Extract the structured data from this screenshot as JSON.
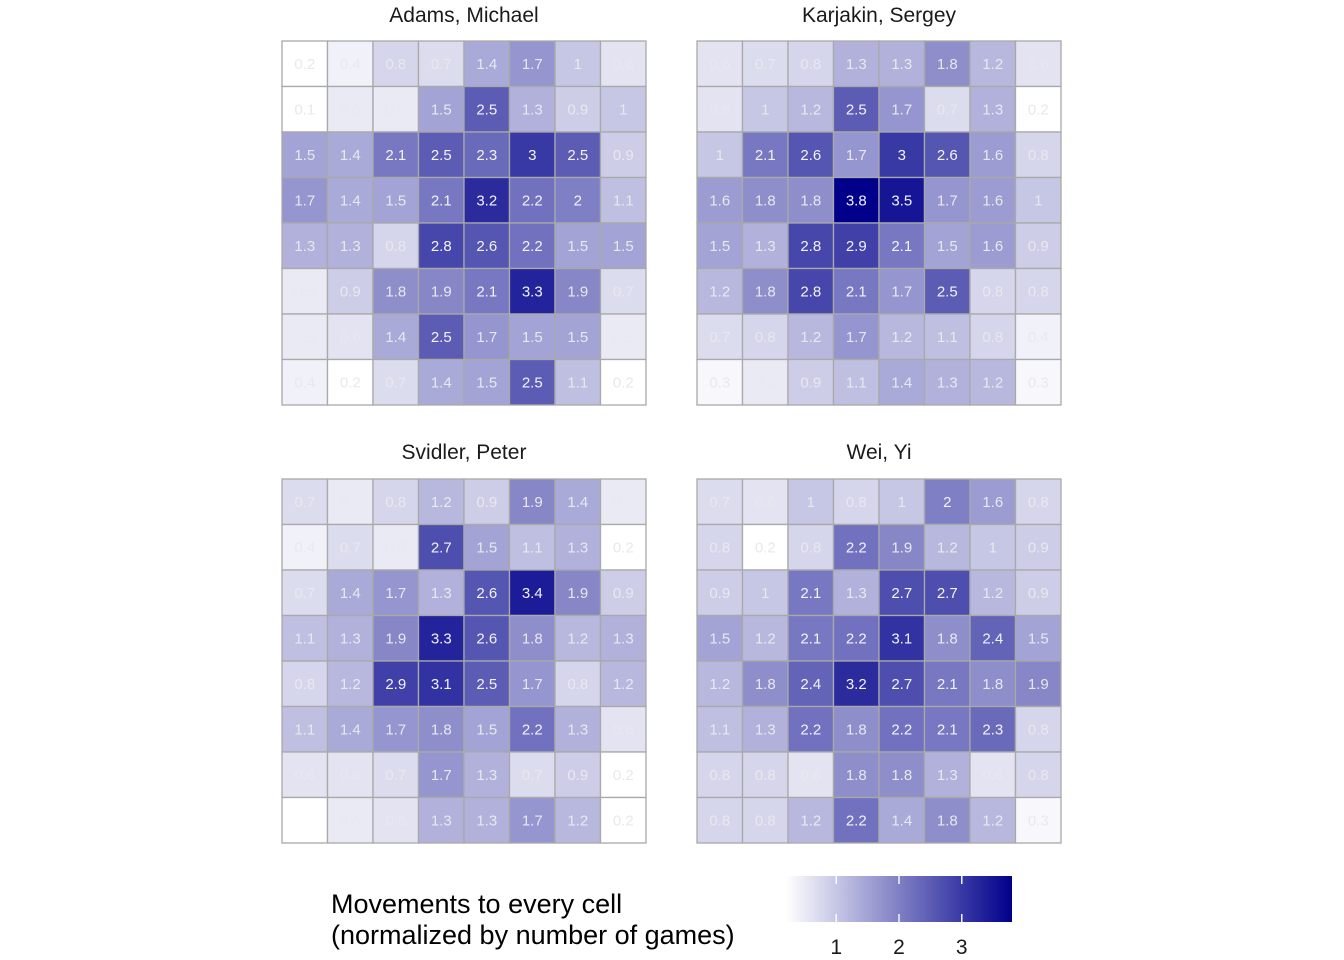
{
  "chart_data": {
    "type": "heatmap",
    "color_scale": {
      "low": "#ffffff",
      "high": "#00008b",
      "min": 0.2,
      "max": 3.8
    },
    "grid": false,
    "legend_position": "bottom",
    "legend": {
      "title_lines": [
        "Movements to every cell",
        "(normalized by number of games)"
      ],
      "ticks": [
        1,
        2,
        3
      ]
    },
    "panels": [
      {
        "title": "Adams, Michael",
        "values": [
          [
            0.2,
            0.4,
            0.8,
            0.7,
            1.4,
            1.7,
            1.0,
            0.6
          ],
          [
            0.1,
            0.5,
            0.5,
            1.5,
            2.5,
            1.3,
            0.9,
            1.0
          ],
          [
            1.5,
            1.4,
            2.1,
            2.5,
            2.3,
            3.0,
            2.5,
            0.9
          ],
          [
            1.7,
            1.4,
            1.5,
            2.1,
            3.2,
            2.2,
            2.0,
            1.1
          ],
          [
            1.3,
            1.3,
            0.8,
            2.8,
            2.6,
            2.2,
            1.5,
            1.5
          ],
          [
            0.5,
            0.9,
            1.8,
            1.9,
            2.1,
            3.3,
            1.9,
            0.7
          ],
          [
            0.5,
            0.6,
            1.4,
            2.5,
            1.7,
            1.5,
            1.5,
            0.5
          ],
          [
            0.4,
            0.2,
            0.7,
            1.4,
            1.5,
            2.5,
            1.1,
            0.2
          ]
        ]
      },
      {
        "title": "Karjakin, Sergey",
        "values": [
          [
            0.6,
            0.7,
            0.8,
            1.3,
            1.3,
            1.8,
            1.2,
            0.6
          ],
          [
            0.6,
            1.0,
            1.2,
            2.5,
            1.7,
            0.7,
            1.3,
            0.2
          ],
          [
            1.0,
            2.1,
            2.6,
            1.7,
            3.0,
            2.6,
            1.6,
            0.8
          ],
          [
            1.6,
            1.8,
            1.8,
            3.8,
            3.5,
            1.7,
            1.6,
            1.0
          ],
          [
            1.5,
            1.3,
            2.8,
            2.9,
            2.1,
            1.5,
            1.6,
            0.9
          ],
          [
            1.2,
            1.8,
            2.8,
            2.1,
            1.7,
            2.5,
            0.8,
            0.8
          ],
          [
            0.7,
            0.8,
            1.2,
            1.7,
            1.2,
            1.1,
            0.8,
            0.4
          ],
          [
            0.3,
            0.5,
            0.9,
            1.1,
            1.4,
            1.3,
            1.2,
            0.3
          ]
        ]
      },
      {
        "title": "Svidler, Peter",
        "values": [
          [
            0.7,
            0.5,
            0.8,
            1.2,
            0.9,
            1.9,
            1.4,
            0.5
          ],
          [
            0.4,
            0.7,
            0.5,
            2.7,
            1.5,
            1.1,
            1.3,
            0.2
          ],
          [
            0.7,
            1.4,
            1.7,
            1.3,
            2.6,
            3.4,
            1.9,
            0.9
          ],
          [
            1.1,
            1.3,
            1.9,
            3.3,
            2.6,
            1.8,
            1.2,
            1.3
          ],
          [
            0.8,
            1.2,
            2.9,
            3.1,
            2.5,
            1.7,
            0.8,
            1.2
          ],
          [
            1.1,
            1.4,
            1.7,
            1.8,
            1.5,
            2.2,
            1.3,
            0.6
          ],
          [
            0.6,
            0.6,
            0.7,
            1.7,
            1.3,
            0.7,
            0.9,
            0.2
          ],
          [
            null,
            0.5,
            0.6,
            1.3,
            1.3,
            1.7,
            1.2,
            0.2
          ]
        ]
      },
      {
        "title": "Wei, Yi",
        "values": [
          [
            0.7,
            0.6,
            1.0,
            0.8,
            1.0,
            2.0,
            1.6,
            0.8
          ],
          [
            0.8,
            0.2,
            0.8,
            2.2,
            1.9,
            1.2,
            1.0,
            0.9
          ],
          [
            0.9,
            1.0,
            2.1,
            1.3,
            2.7,
            2.7,
            1.2,
            0.9
          ],
          [
            1.5,
            1.2,
            2.1,
            2.2,
            3.1,
            1.8,
            2.4,
            1.5
          ],
          [
            1.2,
            1.8,
            2.4,
            3.2,
            2.7,
            2.1,
            1.8,
            1.9
          ],
          [
            1.1,
            1.3,
            2.2,
            1.8,
            2.2,
            2.1,
            2.3,
            0.8
          ],
          [
            0.8,
            0.8,
            0.6,
            1.8,
            1.8,
            1.3,
            0.6,
            0.8
          ],
          [
            0.8,
            0.8,
            1.2,
            2.2,
            1.4,
            1.8,
            1.2,
            0.3
          ]
        ]
      }
    ]
  }
}
